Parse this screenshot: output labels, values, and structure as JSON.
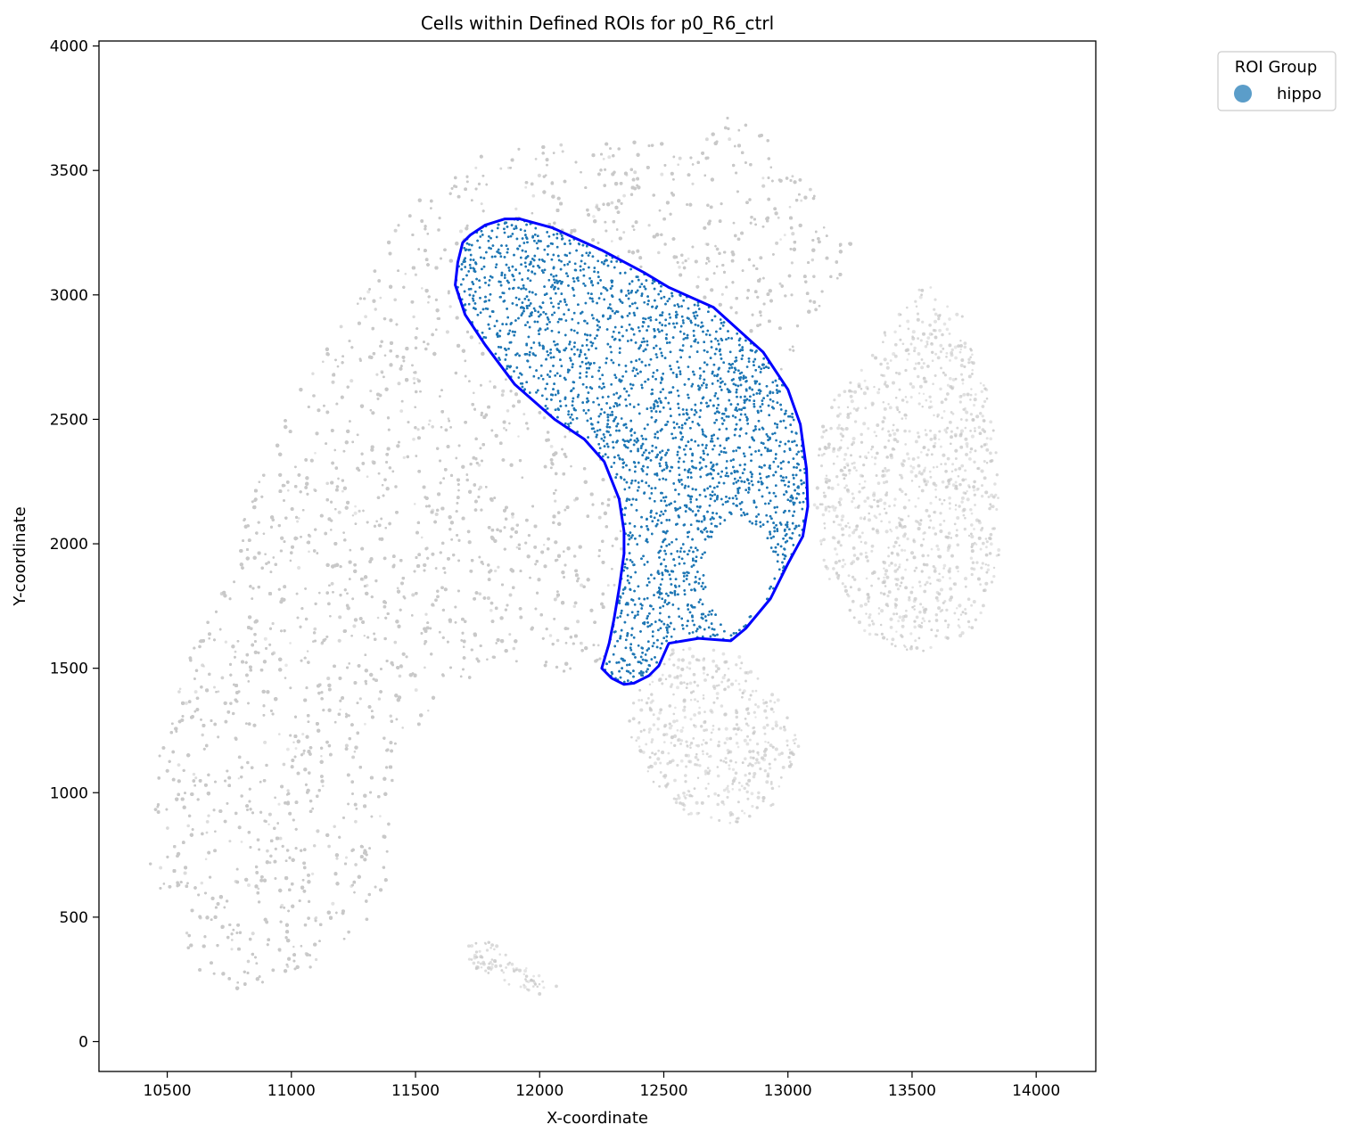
{
  "chart_data": {
    "type": "scatter",
    "title": "Cells within Defined ROIs for p0_R6_ctrl",
    "xlabel": "X-coordinate",
    "ylabel": "Y-coordinate",
    "xlim": [
      10225,
      14240
    ],
    "ylim": [
      -120,
      4020
    ],
    "xticks": [
      10500,
      11000,
      11500,
      12000,
      12500,
      13000,
      13500,
      14000
    ],
    "yticks": [
      0,
      500,
      1000,
      1500,
      2000,
      2500,
      3000,
      3500,
      4000
    ],
    "xtick_labels": [
      "10500",
      "11000",
      "11500",
      "12000",
      "12500",
      "13000",
      "13500",
      "14000"
    ],
    "ytick_labels": [
      "0",
      "500",
      "1000",
      "1500",
      "2000",
      "2500",
      "3000",
      "3500",
      "4000"
    ],
    "grid": false,
    "legend": {
      "title": "ROI Group",
      "placement": "outside-top-right",
      "entries": [
        {
          "label": "hippo",
          "color": "#5b9dc9"
        }
      ]
    },
    "background_cells": {
      "color": "#c8c8c8",
      "regions": [
        [
          [
            10430,
            700
          ],
          [
            10480,
            1300
          ],
          [
            10650,
            1700
          ],
          [
            10850,
            2250
          ],
          [
            11050,
            2650
          ],
          [
            11300,
            3050
          ],
          [
            11500,
            3400
          ],
          [
            11750,
            3560
          ],
          [
            12000,
            3600
          ],
          [
            12300,
            3620
          ],
          [
            12600,
            3600
          ],
          [
            12750,
            3750
          ],
          [
            12950,
            3600
          ],
          [
            13150,
            3350
          ],
          [
            13300,
            3200
          ],
          [
            13100,
            2900
          ],
          [
            12950,
            2650
          ],
          [
            12850,
            2300
          ],
          [
            12750,
            2000
          ],
          [
            12600,
            1700
          ],
          [
            12300,
            1500
          ],
          [
            12050,
            1480
          ],
          [
            11800,
            1500
          ],
          [
            11600,
            1400
          ],
          [
            11450,
            1180
          ],
          [
            11400,
            900
          ],
          [
            11380,
            550
          ],
          [
            11100,
            300
          ],
          [
            10800,
            200
          ],
          [
            10550,
            320
          ]
        ],
        [
          [
            13350,
            2800
          ],
          [
            13550,
            3050
          ],
          [
            13700,
            2950
          ],
          [
            13800,
            2650
          ],
          [
            13850,
            2300
          ],
          [
            13850,
            1900
          ],
          [
            13750,
            1650
          ],
          [
            13500,
            1550
          ],
          [
            13300,
            1650
          ],
          [
            13150,
            1850
          ],
          [
            13100,
            2200
          ],
          [
            13150,
            2550
          ]
        ],
        [
          [
            12400,
            1450
          ],
          [
            12550,
            1600
          ],
          [
            12800,
            1560
          ],
          [
            12950,
            1400
          ],
          [
            13050,
            1200
          ],
          [
            12950,
            950
          ],
          [
            12800,
            870
          ],
          [
            12600,
            900
          ],
          [
            12450,
            1050
          ],
          [
            12350,
            1250
          ]
        ],
        [
          [
            11700,
            380
          ],
          [
            11800,
            420
          ],
          [
            11950,
            300
          ],
          [
            12080,
            220
          ],
          [
            12000,
            180
          ],
          [
            11850,
            240
          ],
          [
            11720,
            300
          ]
        ]
      ],
      "density": 11000
    },
    "roi_polygon": {
      "name": "hippo",
      "color": "#0000ff",
      "points": [
        [
          11720,
          3240
        ],
        [
          11780,
          3280
        ],
        [
          11860,
          3305
        ],
        [
          11920,
          3305
        ],
        [
          12050,
          3270
        ],
        [
          12250,
          3180
        ],
        [
          12420,
          3090
        ],
        [
          12520,
          3030
        ],
        [
          12700,
          2950
        ],
        [
          12800,
          2860
        ],
        [
          12900,
          2770
        ],
        [
          13000,
          2620
        ],
        [
          13050,
          2480
        ],
        [
          13075,
          2300
        ],
        [
          13080,
          2150
        ],
        [
          13060,
          2030
        ],
        [
          13000,
          1920
        ],
        [
          12930,
          1780
        ],
        [
          12830,
          1660
        ],
        [
          12770,
          1610
        ],
        [
          12640,
          1620
        ],
        [
          12520,
          1600
        ],
        [
          12480,
          1510
        ],
        [
          12440,
          1470
        ],
        [
          12380,
          1440
        ],
        [
          12340,
          1435
        ],
        [
          12290,
          1460
        ],
        [
          12250,
          1500
        ],
        [
          12280,
          1600
        ],
        [
          12300,
          1700
        ],
        [
          12320,
          1820
        ],
        [
          12340,
          1960
        ],
        [
          12340,
          2050
        ],
        [
          12320,
          2180
        ],
        [
          12260,
          2330
        ],
        [
          12180,
          2420
        ],
        [
          12060,
          2500
        ],
        [
          11900,
          2640
        ],
        [
          11780,
          2800
        ],
        [
          11700,
          2920
        ],
        [
          11660,
          3040
        ],
        [
          11670,
          3130
        ],
        [
          11690,
          3210
        ]
      ]
    },
    "roi_cells": {
      "color": "#1f77b4",
      "density": 7000
    }
  }
}
